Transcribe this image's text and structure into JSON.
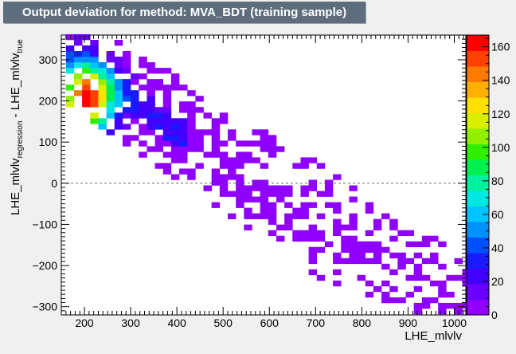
{
  "title": "Output deviation for method: MVA_BDT (training sample)",
  "chart_data": {
    "type": "heatmap",
    "title": "Output deviation for method: MVA_BDT (training sample)",
    "xlabel": "LHE_mlvlv",
    "ylabel": {
      "main": "LHE_mlvlv",
      "sub1": "regression",
      "mid": " - LHE_mlvlv",
      "sub2": "true"
    },
    "xlim": [
      150,
      1025
    ],
    "ylim": [
      -320,
      360
    ],
    "x_ticks": [
      200,
      300,
      400,
      500,
      600,
      700,
      800,
      900,
      1000
    ],
    "y_ticks": [
      -300,
      -200,
      -100,
      0,
      100,
      200,
      300
    ],
    "colorbar": {
      "zlim": [
        0,
        167
      ],
      "ticks": [
        0,
        20,
        40,
        60,
        80,
        100,
        120,
        140,
        160
      ]
    },
    "bin_width_x": 17.5,
    "bin_width_y": 13.6,
    "reference_line_y": 0,
    "hotspot": {
      "x": 205,
      "y": 205,
      "peak_count": 165
    },
    "grid": false,
    "legend": "none"
  }
}
